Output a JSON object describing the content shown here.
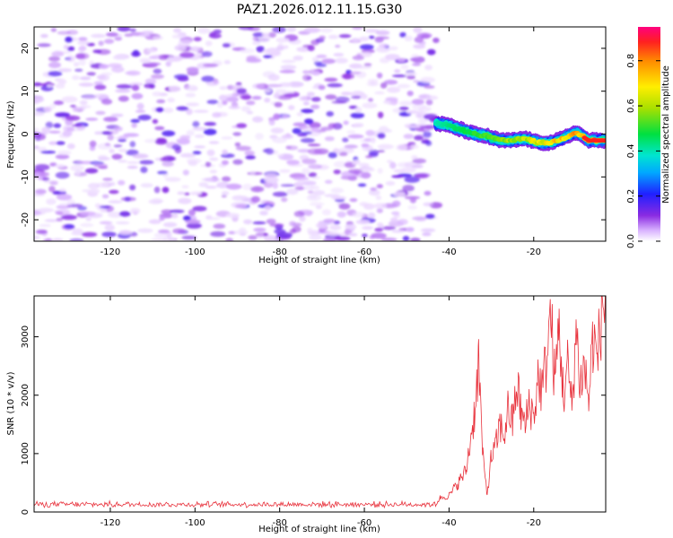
{
  "figure_title": "PAZ1.2026.012.11.15.G30",
  "colors": {
    "line": "#e8323c",
    "axis": "#000000",
    "spec_base": "#9a4cf0"
  },
  "chart_data": [
    {
      "type": "heatmap",
      "title": "PAZ1.2026.012.11.15.G30",
      "xlabel": "Height of straight line (km)",
      "ylabel": "Frequency (Hz)",
      "xlim": [
        -138,
        -3
      ],
      "ylim": [
        -25,
        25
      ],
      "xticks": [
        -120,
        -100,
        -80,
        -60,
        -40,
        -20
      ],
      "yticks": [
        20,
        10,
        0,
        -10,
        -20
      ],
      "noise_region_x": [
        -138,
        -43
      ],
      "signal_track": [
        {
          "x": -43,
          "f": 2.5
        },
        {
          "x": -40,
          "f": 2.0
        },
        {
          "x": -37,
          "f": 1.0
        },
        {
          "x": -34,
          "f": 0.0
        },
        {
          "x": -31,
          "f": -0.5
        },
        {
          "x": -28,
          "f": -1.5
        },
        {
          "x": -25,
          "f": -1.5
        },
        {
          "x": -22,
          "f": -1.0
        },
        {
          "x": -19,
          "f": -2.0
        },
        {
          "x": -16,
          "f": -2.0
        },
        {
          "x": -13,
          "f": -1.0
        },
        {
          "x": -10,
          "f": 0.5
        },
        {
          "x": -7,
          "f": -1.5
        },
        {
          "x": -3,
          "f": -1.5
        }
      ],
      "colorbar": {
        "label": "Normalized spectral amplitude",
        "range": [
          0.0,
          0.95
        ],
        "ticks": [
          0.0,
          0.2,
          0.4,
          0.6,
          0.8
        ],
        "tick_labels": [
          "0.0",
          "0.2",
          "0.4",
          "0.6",
          "0.8"
        ]
      }
    },
    {
      "type": "line",
      "xlabel": "Height of straight line (km)",
      "ylabel": "SNR (10 * v/v)",
      "xlim": [
        -138,
        -3
      ],
      "ylim": [
        0,
        3700
      ],
      "xticks": [
        -120,
        -100,
        -80,
        -60,
        -40,
        -20
      ],
      "yticks": [
        0,
        1000,
        2000,
        3000
      ],
      "noise_level": {
        "x_range": [
          -138,
          -43
        ],
        "mean": 130,
        "spread": 60
      },
      "envelope": [
        [
          -43,
          150
        ],
        [
          -42,
          250
        ],
        [
          -40,
          280
        ],
        [
          -38,
          480
        ],
        [
          -36,
          700
        ],
        [
          -35,
          1200
        ],
        [
          -34,
          1700
        ],
        [
          -33,
          2600
        ],
        [
          -32,
          900
        ],
        [
          -31,
          300
        ],
        [
          -30,
          950
        ],
        [
          -29,
          1100
        ],
        [
          -28,
          1500
        ],
        [
          -27,
          1300
        ],
        [
          -26,
          1800
        ],
        [
          -25,
          1500
        ],
        [
          -24,
          2200
        ],
        [
          -23,
          1700
        ],
        [
          -22,
          1450
        ],
        [
          -21,
          1900
        ],
        [
          -20,
          1600
        ],
        [
          -19,
          2300
        ],
        [
          -18,
          2100
        ],
        [
          -17,
          2600
        ],
        [
          -16,
          3400
        ],
        [
          -15,
          2200
        ],
        [
          -14,
          3200
        ],
        [
          -13,
          2000
        ],
        [
          -12,
          2500
        ],
        [
          -11,
          1800
        ],
        [
          -10,
          3100
        ],
        [
          -9,
          2200
        ],
        [
          -8,
          2500
        ],
        [
          -7,
          1900
        ],
        [
          -6,
          3000
        ],
        [
          -5,
          2600
        ],
        [
          -4,
          3400
        ],
        [
          -3,
          3700
        ]
      ]
    }
  ]
}
